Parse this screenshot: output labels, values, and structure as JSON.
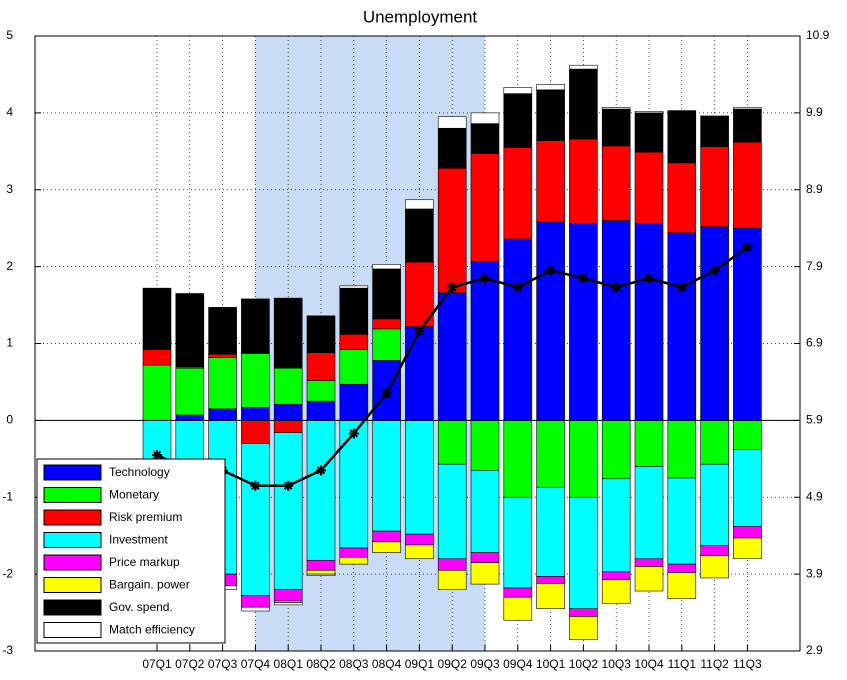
{
  "chart_data": {
    "type": "bar",
    "stacked": true,
    "title": "Unemployment",
    "categories": [
      "07Q1",
      "07Q2",
      "07Q3",
      "07Q4",
      "08Q1",
      "08Q2",
      "08Q3",
      "08Q4",
      "09Q1",
      "09Q2",
      "09Q3",
      "09Q4",
      "10Q1",
      "10Q2",
      "10Q3",
      "10Q4",
      "11Q1",
      "11Q2",
      "11Q3"
    ],
    "ylim": [
      -3,
      5
    ],
    "yticks": [
      -3,
      -2,
      -1,
      0,
      1,
      2,
      3,
      4,
      5
    ],
    "y2lim": [
      2.9,
      10.9
    ],
    "y2ticks": [
      2.9,
      3.9,
      4.9,
      5.9,
      6.9,
      7.9,
      8.9,
      9.9,
      10.9
    ],
    "grid": true,
    "legend": "lower left",
    "highlight": {
      "start": 3,
      "end": 10,
      "color": "#c8dcf5"
    },
    "series": [
      {
        "name": "Technology",
        "color": "#0000ff",
        "values": [
          0,
          0.07,
          0.15,
          0.17,
          0.21,
          0.25,
          0.47,
          0.78,
          1.22,
          1.66,
          2.07,
          2.36,
          2.58,
          2.56,
          2.6,
          2.56,
          2.44,
          2.52,
          2.5
        ]
      },
      {
        "name": "Monetary",
        "color": "#00ff00",
        "values": [
          0.72,
          0.61,
          0.67,
          0.7,
          0.47,
          0.27,
          0.45,
          0.41,
          0,
          -0.57,
          -0.65,
          -1.0,
          -0.87,
          -1.0,
          -0.76,
          -0.6,
          -0.75,
          -0.57,
          -0.38
        ]
      },
      {
        "name": "Risk premium",
        "color": "#ff0000",
        "values": [
          0.2,
          0.02,
          0.04,
          -0.3,
          -0.16,
          0.36,
          0.2,
          0.13,
          0.84,
          1.62,
          1.4,
          1.19,
          1.06,
          1.1,
          0.97,
          0.93,
          0.91,
          1.04,
          1.12
        ]
      },
      {
        "name": "Investment",
        "color": "#00ffff",
        "values": [
          -1.9,
          -2.0,
          -2.0,
          -1.98,
          -2.04,
          -1.82,
          -1.66,
          -1.44,
          -1.48,
          -1.23,
          -1.07,
          -1.18,
          -1.16,
          -1.45,
          -1.21,
          -1.2,
          -1.12,
          -1.06,
          -1.0
        ]
      },
      {
        "name": "Price markup",
        "color": "#ff00ff",
        "values": [
          -0.15,
          -0.15,
          -0.15,
          -0.15,
          -0.15,
          -0.13,
          -0.12,
          -0.14,
          -0.14,
          -0.15,
          -0.13,
          -0.12,
          -0.09,
          -0.1,
          -0.1,
          -0.1,
          -0.11,
          -0.13,
          -0.15
        ]
      },
      {
        "name": "Bargain. power",
        "color": "#ffff00",
        "values": [
          -0.05,
          -0.05,
          0,
          0,
          -0.02,
          -0.05,
          -0.09,
          -0.14,
          -0.18,
          -0.25,
          -0.28,
          -0.3,
          -0.33,
          -0.3,
          -0.31,
          -0.32,
          -0.34,
          -0.29,
          -0.27
        ]
      },
      {
        "name": "Gov. spend.",
        "color": "#000000",
        "values": [
          0.8,
          0.95,
          0.61,
          0.71,
          0.91,
          0.48,
          0.6,
          0.65,
          0.69,
          0.52,
          0.39,
          0.7,
          0.66,
          0.91,
          0.48,
          0.51,
          0.68,
          0.4,
          0.43
        ]
      },
      {
        "name": "Match efficiency",
        "color": "#ffffff",
        "values": [
          -0.05,
          -0.05,
          -0.05,
          -0.05,
          -0.03,
          -0.02,
          0.03,
          0.06,
          0.12,
          0.15,
          0.14,
          0.08,
          0.07,
          0.05,
          0.02,
          0.02,
          0,
          0,
          0.02
        ]
      },
      {
        "type": "line",
        "axis": "y2",
        "color": "#000000",
        "values": [
          5.45,
          5.25,
          5.25,
          5.05,
          5.05,
          5.25,
          5.73,
          6.25,
          7.06,
          7.63,
          7.75,
          7.63,
          7.85,
          7.75,
          7.63,
          7.75,
          7.63,
          7.85,
          8.15
        ]
      }
    ]
  }
}
